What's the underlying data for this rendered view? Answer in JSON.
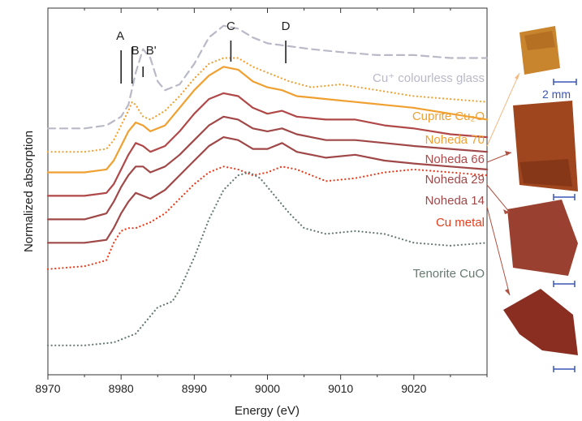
{
  "chart_data": {
    "type": "line",
    "xlabel": "Energy (eV)",
    "ylabel": "Normalized absorption",
    "xlim": [
      8970,
      9030
    ],
    "xticks": [
      8970,
      8980,
      8990,
      9000,
      9010,
      9020
    ],
    "grid": false,
    "legend": "labels placed beside each curve at right",
    "markers": [
      {
        "label": "A",
        "x": 8980.0
      },
      {
        "label": "B",
        "x": 8981.5
      },
      {
        "label": "B'",
        "x": 8983.0
      },
      {
        "label": "C",
        "x": 8995.0
      },
      {
        "label": "D",
        "x": 9002.5
      }
    ],
    "series": [
      {
        "name": "Cu⁺ colourless glass",
        "color": "#b9b9c7",
        "style": "dashed",
        "points": [
          [
            8970,
            0.09
          ],
          [
            8975,
            0.09
          ],
          [
            8978,
            0.1
          ],
          [
            8980,
            0.13
          ],
          [
            8981,
            0.17
          ],
          [
            8982,
            0.28
          ],
          [
            8983,
            0.36
          ],
          [
            8984,
            0.33
          ],
          [
            8985,
            0.25
          ],
          [
            8986,
            0.22
          ],
          [
            8988,
            0.24
          ],
          [
            8990,
            0.31
          ],
          [
            8992,
            0.4
          ],
          [
            8994,
            0.44
          ],
          [
            8996,
            0.43
          ],
          [
            8998,
            0.4
          ],
          [
            9000,
            0.38
          ],
          [
            9003,
            0.37
          ],
          [
            9006,
            0.36
          ],
          [
            9010,
            0.35
          ],
          [
            9015,
            0.34
          ],
          [
            9020,
            0.34
          ],
          [
            9025,
            0.33
          ],
          [
            9030,
            0.33
          ]
        ]
      },
      {
        "name": "Cuprite Cu₂O",
        "color": "#f0a030",
        "style": "dotted",
        "points": [
          [
            8970,
            0.01
          ],
          [
            8975,
            0.01
          ],
          [
            8978,
            0.02
          ],
          [
            8979,
            0.05
          ],
          [
            8980,
            0.1
          ],
          [
            8981,
            0.15
          ],
          [
            8981.5,
            0.18
          ],
          [
            8982,
            0.17
          ],
          [
            8983,
            0.13
          ],
          [
            8984,
            0.12
          ],
          [
            8986,
            0.15
          ],
          [
            8988,
            0.2
          ],
          [
            8990,
            0.26
          ],
          [
            8992,
            0.31
          ],
          [
            8994,
            0.33
          ],
          [
            8996,
            0.33
          ],
          [
            8998,
            0.3
          ],
          [
            9000,
            0.28
          ],
          [
            9003,
            0.25
          ],
          [
            9006,
            0.23
          ],
          [
            9010,
            0.24
          ],
          [
            9015,
            0.22
          ],
          [
            9020,
            0.2
          ],
          [
            9025,
            0.19
          ],
          [
            9030,
            0.18
          ]
        ]
      },
      {
        "name": "Noheda 70",
        "color": "#f0a030",
        "style": "solid",
        "points": [
          [
            8970,
            -0.06
          ],
          [
            8975,
            -0.06
          ],
          [
            8978,
            -0.05
          ],
          [
            8979,
            -0.02
          ],
          [
            8980,
            0.03
          ],
          [
            8981,
            0.08
          ],
          [
            8982,
            0.11
          ],
          [
            8983,
            0.1
          ],
          [
            8984,
            0.08
          ],
          [
            8986,
            0.1
          ],
          [
            8988,
            0.16
          ],
          [
            8990,
            0.22
          ],
          [
            8992,
            0.27
          ],
          [
            8994,
            0.3
          ],
          [
            8996,
            0.29
          ],
          [
            8998,
            0.25
          ],
          [
            9000,
            0.23
          ],
          [
            9002,
            0.22
          ],
          [
            9004,
            0.2
          ],
          [
            9008,
            0.19
          ],
          [
            9012,
            0.18
          ],
          [
            9016,
            0.17
          ],
          [
            9020,
            0.16
          ],
          [
            9025,
            0.14
          ],
          [
            9030,
            0.12
          ]
        ]
      },
      {
        "name": "Noheda 66",
        "color": "#b04848",
        "style": "solid",
        "points": [
          [
            8970,
            -0.14
          ],
          [
            8975,
            -0.14
          ],
          [
            8978,
            -0.13
          ],
          [
            8979,
            -0.1
          ],
          [
            8980,
            -0.05
          ],
          [
            8981,
            0.0
          ],
          [
            8982,
            0.04
          ],
          [
            8983,
            0.03
          ],
          [
            8984,
            0.01
          ],
          [
            8986,
            0.03
          ],
          [
            8988,
            0.08
          ],
          [
            8990,
            0.14
          ],
          [
            8992,
            0.19
          ],
          [
            8994,
            0.21
          ],
          [
            8996,
            0.2
          ],
          [
            8998,
            0.16
          ],
          [
            9000,
            0.14
          ],
          [
            9002,
            0.15
          ],
          [
            9004,
            0.13
          ],
          [
            9008,
            0.12
          ],
          [
            9012,
            0.12
          ],
          [
            9016,
            0.1
          ],
          [
            9020,
            0.09
          ],
          [
            9025,
            0.07
          ],
          [
            9030,
            0.06
          ]
        ]
      },
      {
        "name": "Noheda 29",
        "color": "#a04848",
        "style": "solid",
        "points": [
          [
            8970,
            -0.22
          ],
          [
            8975,
            -0.22
          ],
          [
            8978,
            -0.2
          ],
          [
            8979,
            -0.16
          ],
          [
            8980,
            -0.11
          ],
          [
            8981,
            -0.07
          ],
          [
            8982,
            -0.04
          ],
          [
            8983,
            -0.04
          ],
          [
            8984,
            -0.06
          ],
          [
            8986,
            -0.04
          ],
          [
            8988,
            0.0
          ],
          [
            8990,
            0.05
          ],
          [
            8992,
            0.1
          ],
          [
            8994,
            0.13
          ],
          [
            8996,
            0.12
          ],
          [
            8998,
            0.09
          ],
          [
            9000,
            0.08
          ],
          [
            9002,
            0.09
          ],
          [
            9004,
            0.07
          ],
          [
            9008,
            0.05
          ],
          [
            9012,
            0.05
          ],
          [
            9016,
            0.04
          ],
          [
            9020,
            0.03
          ],
          [
            9025,
            0.02
          ],
          [
            9030,
            0.01
          ]
        ]
      },
      {
        "name": "Noheda 14",
        "color": "#a04848",
        "style": "solid",
        "points": [
          [
            8970,
            -0.3
          ],
          [
            8975,
            -0.3
          ],
          [
            8978,
            -0.29
          ],
          [
            8979,
            -0.25
          ],
          [
            8980,
            -0.2
          ],
          [
            8981,
            -0.16
          ],
          [
            8982,
            -0.13
          ],
          [
            8983,
            -0.14
          ],
          [
            8984,
            -0.15
          ],
          [
            8986,
            -0.12
          ],
          [
            8988,
            -0.07
          ],
          [
            8990,
            -0.02
          ],
          [
            8992,
            0.03
          ],
          [
            8994,
            0.06
          ],
          [
            8996,
            0.05
          ],
          [
            8998,
            0.02
          ],
          [
            9000,
            0.02
          ],
          [
            9002,
            0.04
          ],
          [
            9004,
            0.01
          ],
          [
            9008,
            -0.01
          ],
          [
            9012,
            0.0
          ],
          [
            9016,
            -0.02
          ],
          [
            9020,
            -0.03
          ],
          [
            9025,
            -0.04
          ],
          [
            9030,
            -0.05
          ]
        ]
      },
      {
        "name": "Cu metal",
        "color": "#e83c1c",
        "style": "dotted",
        "points": [
          [
            8970,
            -0.39
          ],
          [
            8975,
            -0.38
          ],
          [
            8978,
            -0.36
          ],
          [
            8979,
            -0.3
          ],
          [
            8980,
            -0.26
          ],
          [
            8981,
            -0.25
          ],
          [
            8982,
            -0.25
          ],
          [
            8984,
            -0.23
          ],
          [
            8986,
            -0.2
          ],
          [
            8988,
            -0.15
          ],
          [
            8990,
            -0.1
          ],
          [
            8992,
            -0.06
          ],
          [
            8994,
            -0.04
          ],
          [
            8996,
            -0.05
          ],
          [
            8998,
            -0.07
          ],
          [
            9000,
            -0.06
          ],
          [
            9002,
            -0.04
          ],
          [
            9004,
            -0.05
          ],
          [
            9008,
            -0.09
          ],
          [
            9012,
            -0.08
          ],
          [
            9016,
            -0.06
          ],
          [
            9020,
            -0.05
          ],
          [
            9025,
            -0.06
          ],
          [
            9030,
            -0.07
          ]
        ]
      },
      {
        "name": "Tenorite CuO",
        "color": "#667a70",
        "style": "dotted",
        "points": [
          [
            8970,
            -0.65
          ],
          [
            8975,
            -0.65
          ],
          [
            8979,
            -0.64
          ],
          [
            8982,
            -0.61
          ],
          [
            8984,
            -0.55
          ],
          [
            8985,
            -0.52
          ],
          [
            8986,
            -0.51
          ],
          [
            8987,
            -0.5
          ],
          [
            8988,
            -0.46
          ],
          [
            8990,
            -0.35
          ],
          [
            8992,
            -0.22
          ],
          [
            8994,
            -0.12
          ],
          [
            8996,
            -0.07
          ],
          [
            8997.5,
            -0.06
          ],
          [
            8999,
            -0.08
          ],
          [
            9001,
            -0.14
          ],
          [
            9003,
            -0.2
          ],
          [
            9005,
            -0.25
          ],
          [
            9008,
            -0.27
          ],
          [
            9012,
            -0.26
          ],
          [
            9016,
            -0.27
          ],
          [
            9020,
            -0.3
          ],
          [
            9025,
            -0.31
          ],
          [
            9030,
            -0.3
          ]
        ]
      }
    ]
  },
  "photos": {
    "scale_bar_label": "2 mm",
    "items": [
      {
        "name": "sample-photo-1",
        "color": "#c9842e"
      },
      {
        "name": "sample-photo-2",
        "color": "#a0461e"
      },
      {
        "name": "sample-photo-3",
        "color": "#9a4030"
      },
      {
        "name": "sample-photo-4",
        "color": "#8a2e22"
      }
    ]
  }
}
